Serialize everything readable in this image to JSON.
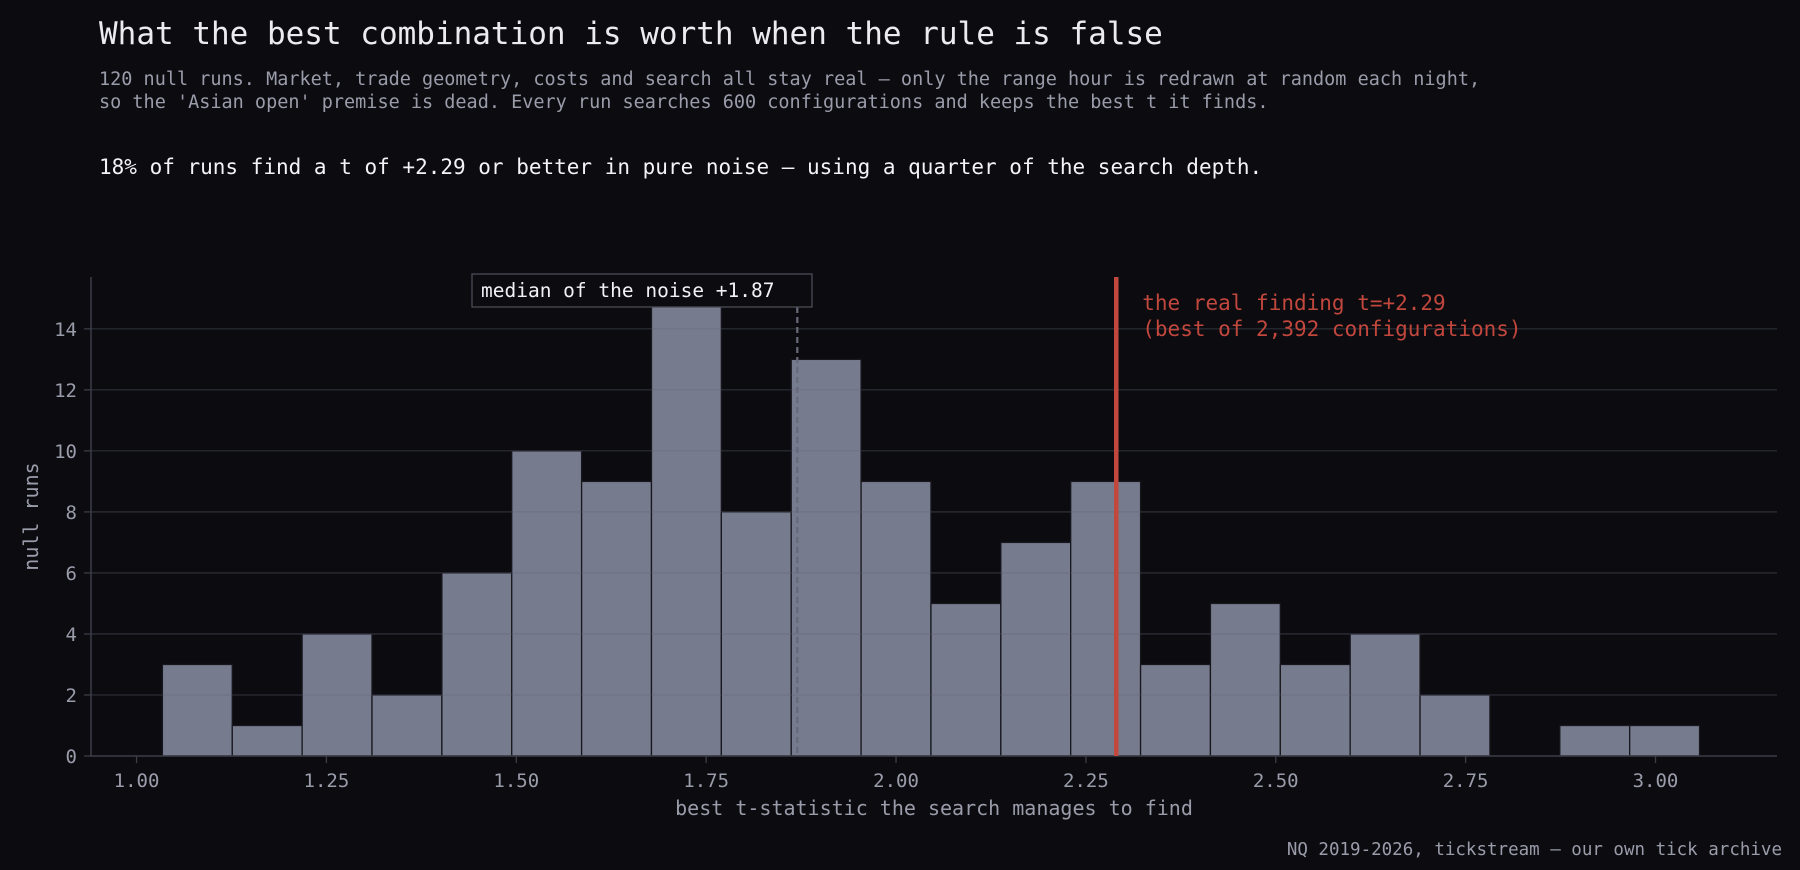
{
  "header": {
    "title": "What the best combination is worth when the rule is false",
    "subtitle_line1": "120 null runs. Market, trade geometry, costs and search all stay real — only the range hour is redrawn at random each night,",
    "subtitle_line2": "so the 'Asian open' premise is dead. Every run searches 600 configurations and keeps the best t it finds.",
    "takeaway": "18% of runs find a t of +2.29 or better in pure noise — using a quarter of the search depth."
  },
  "footer": {
    "source": "NQ 2019-2026, tickstream — our own tick archive"
  },
  "colors": {
    "background": "#0b0b10",
    "bar_fill": "#777b8e",
    "bar_edge": "#17171d",
    "axis": "#3c3d48",
    "grid": "#1a1a21",
    "tick_text": "#9a9caa",
    "median_line": "#686a78",
    "real_finding": "#c2473d"
  },
  "chart_data": {
    "type": "bar",
    "histogram": true,
    "xlabel": "best t-statistic the search manages to find",
    "ylabel": "null runs",
    "xlim": [
      0.94,
      3.16
    ],
    "ylim": [
      0,
      15.7
    ],
    "x_ticks": [
      1.0,
      1.25,
      1.5,
      1.75,
      2.0,
      2.25,
      2.5,
      2.75,
      3.0
    ],
    "x_tick_labels": [
      "1.00",
      "1.25",
      "1.50",
      "1.75",
      "2.00",
      "2.25",
      "2.50",
      "2.75",
      "3.00"
    ],
    "y_ticks": [
      0,
      2,
      4,
      6,
      8,
      10,
      12,
      14
    ],
    "y_tick_labels": [
      "0",
      "2",
      "4",
      "6",
      "8",
      "10",
      "12",
      "14"
    ],
    "grid": "horizontal",
    "bins": {
      "edges": [
        1.034,
        1.126,
        1.218,
        1.31,
        1.402,
        1.494,
        1.586,
        1.678,
        1.77,
        1.862,
        1.954,
        2.046,
        2.138,
        2.23,
        2.322,
        2.414,
        2.506,
        2.598,
        2.69,
        2.782,
        2.874,
        2.966,
        3.058
      ],
      "counts": [
        3,
        1,
        4,
        2,
        6,
        10,
        9,
        15,
        8,
        13,
        9,
        5,
        7,
        9,
        3,
        5,
        3,
        4,
        2,
        0,
        1,
        1
      ]
    },
    "median": {
      "value": 1.87,
      "label": "median of the noise +1.87"
    },
    "real_finding": {
      "value": 2.29,
      "label_line1": "the real finding  t=+2.29",
      "label_line2": "(best of 2,392 configurations)"
    }
  }
}
